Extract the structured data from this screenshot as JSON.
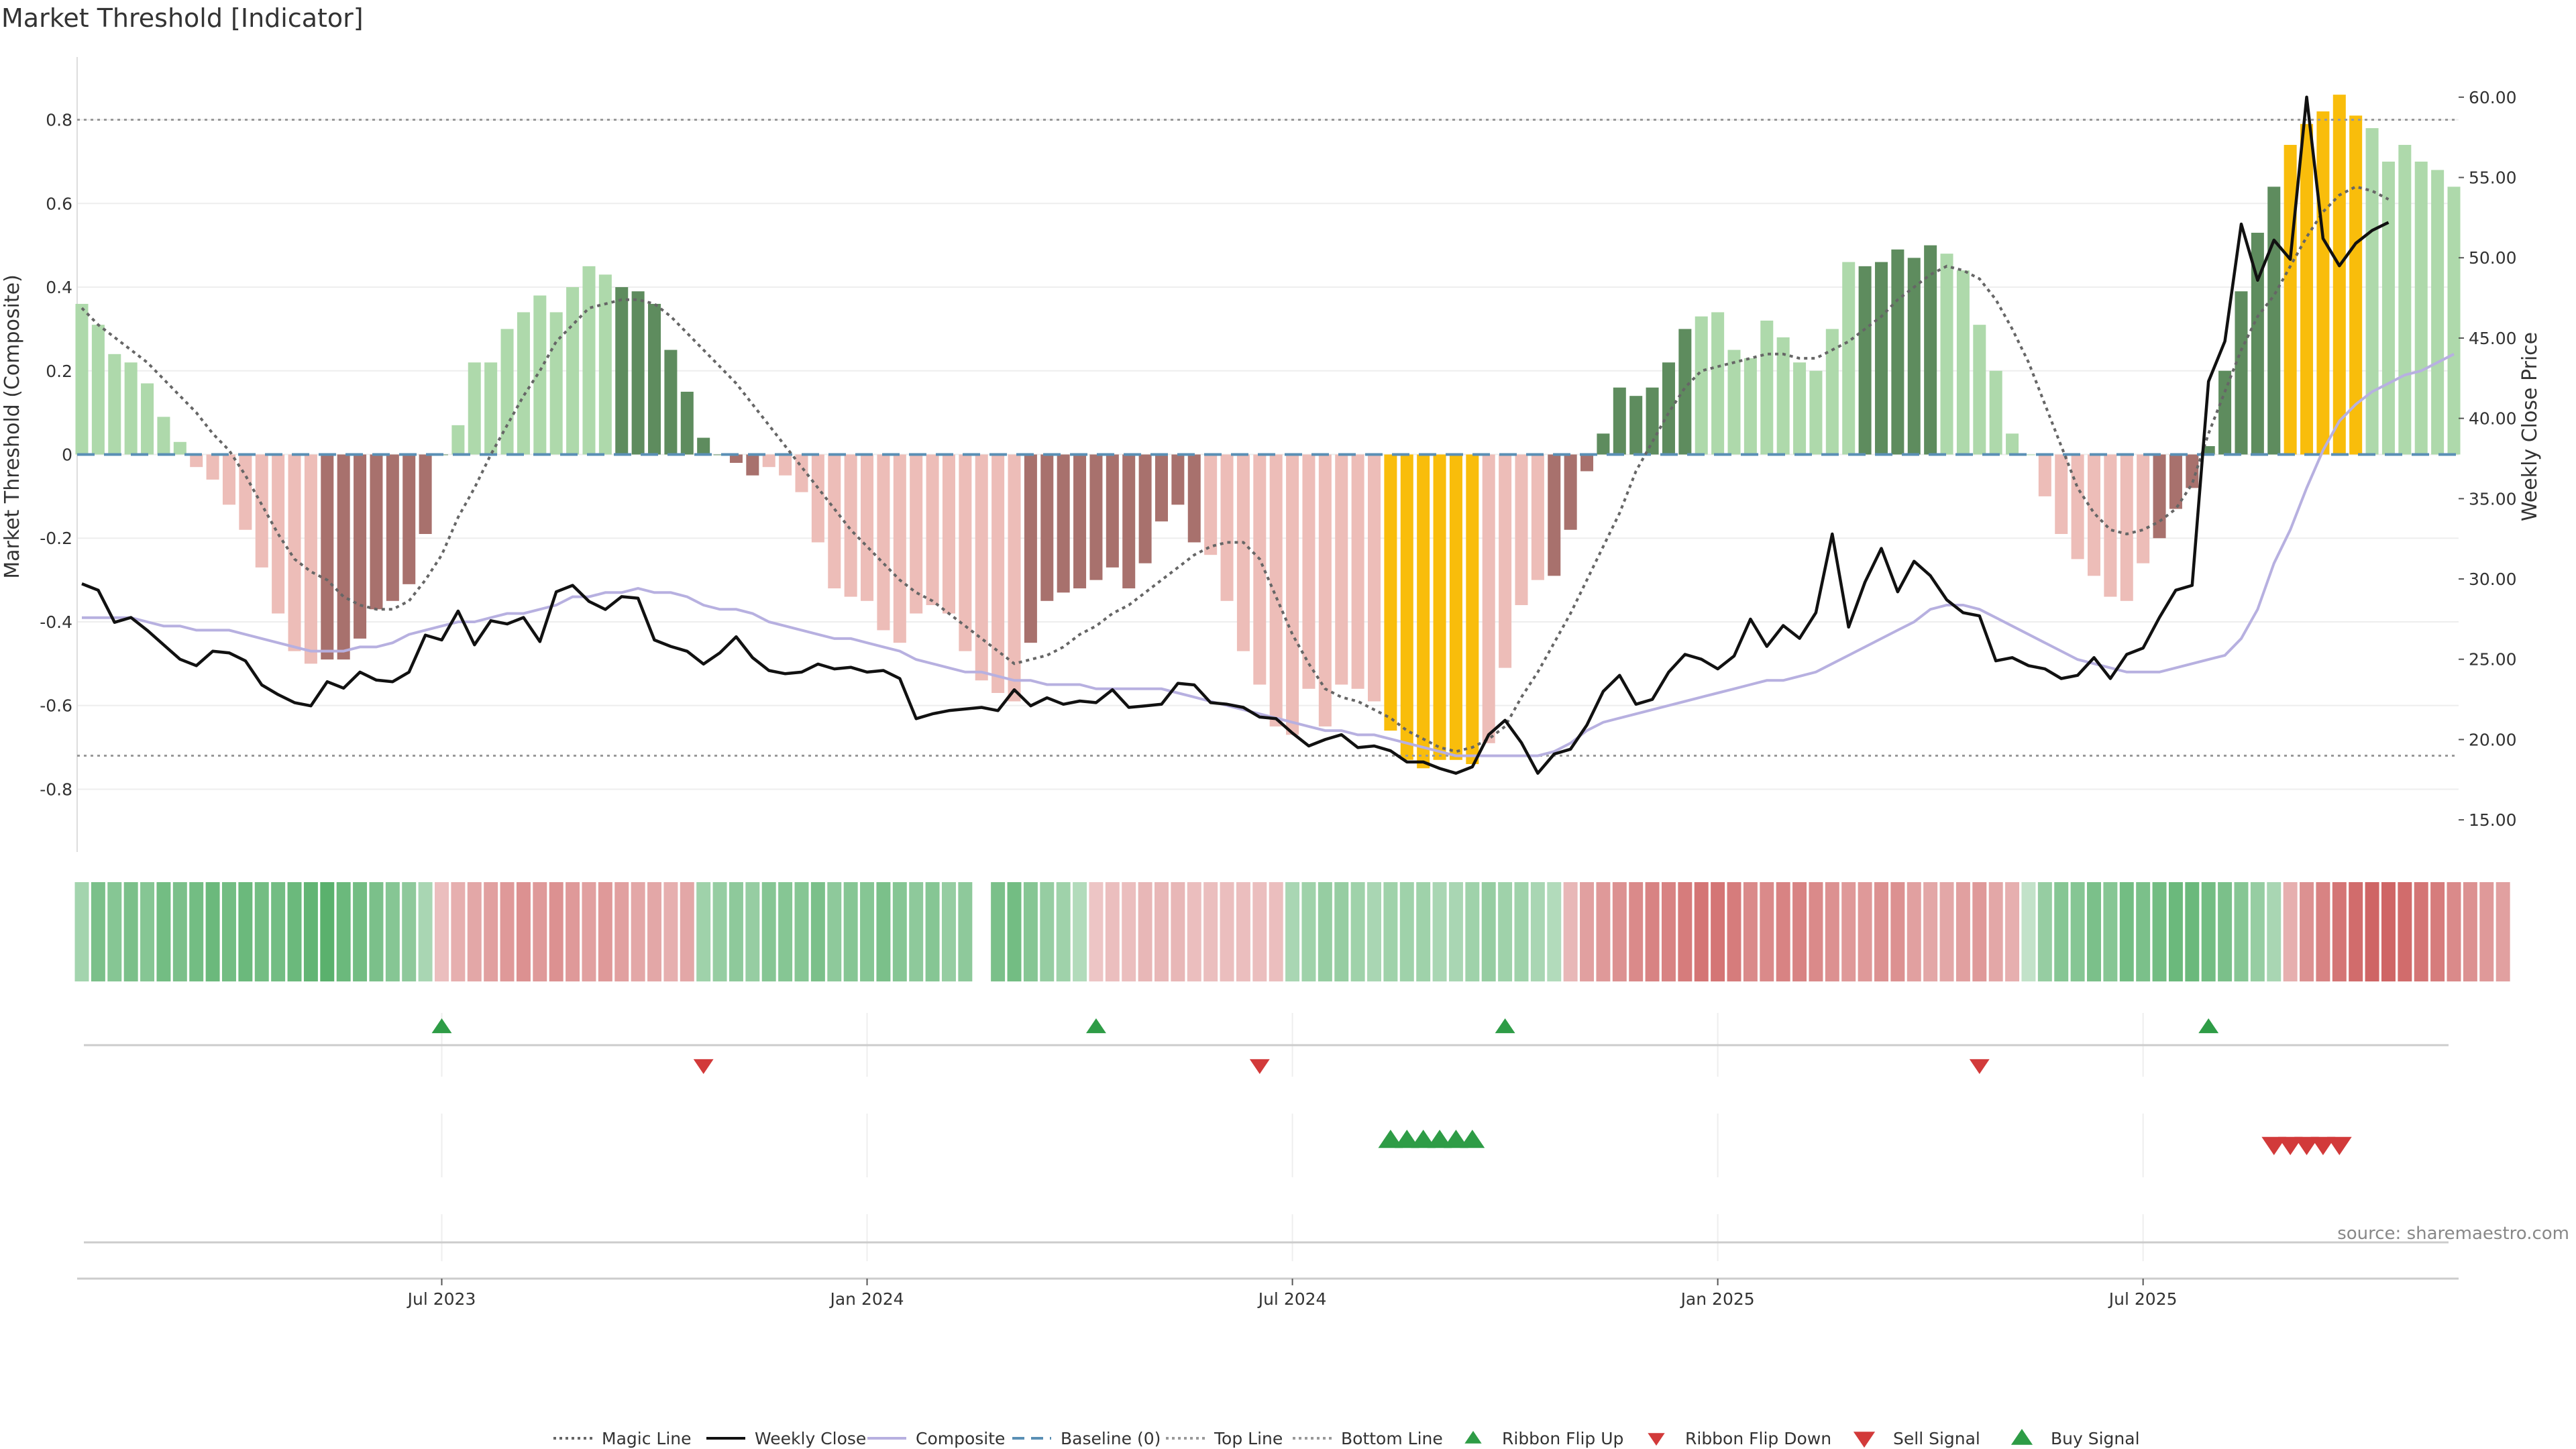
{
  "title": "Market Threshold [Indicator]",
  "source": "source: sharemaestro.com",
  "colors": {
    "bar_strong_green": "#5e8c5e",
    "bar_light_green": "#aed9ab",
    "bar_strong_red": "#a8716d",
    "bar_light_red": "#edbdb8",
    "bar_extreme": "#f9bd0b",
    "weekly_close": "#111111",
    "composite": "#b7b0e0",
    "magic_line": "#666666",
    "baseline": "#5a8fb5",
    "threshold_line": "#999999",
    "signal_green": "#2e9c46",
    "signal_red": "#d23a3a"
  },
  "chart_data": {
    "type": "bar",
    "left_axis": {
      "label": "Market Threshold (Composite)",
      "ylim": [
        -0.95,
        0.95
      ],
      "ticks": [
        "-0.8",
        "-0.6",
        "-0.4",
        "-0.2",
        "0",
        "0.2",
        "0.4",
        "0.6",
        "0.8"
      ]
    },
    "right_axis": {
      "label": "Weekly Close Price",
      "ylim": [
        13.0,
        62.5
      ],
      "ticks": [
        "15.00",
        "20.00",
        "25.00",
        "30.00",
        "35.00",
        "40.00",
        "45.00",
        "50.00",
        "55.00",
        "60.00"
      ]
    },
    "x_ticks": [
      {
        "label": "Jul 2023",
        "week": 22
      },
      {
        "label": "Jan 2024",
        "week": 48
      },
      {
        "label": "Jul 2024",
        "week": 74
      },
      {
        "label": "Jan 2025",
        "week": 100
      },
      {
        "label": "Jul 2025",
        "week": 126
      }
    ],
    "reference_lines": {
      "top": 0.8,
      "bottom": -0.72,
      "baseline": 0
    },
    "threshold_bars": [
      0.36,
      0.31,
      0.24,
      0.22,
      0.17,
      0.09,
      0.03,
      -0.03,
      -0.06,
      -0.12,
      -0.18,
      -0.27,
      -0.38,
      -0.47,
      -0.5,
      -0.49,
      -0.49,
      -0.44,
      -0.37,
      -0.35,
      -0.31,
      -0.19,
      0,
      0.07,
      0.22,
      0.22,
      0.3,
      0.34,
      0.38,
      0.34,
      0.4,
      0.45,
      0.43,
      0.4,
      0.39,
      0.36,
      0.25,
      0.15,
      0.04,
      0,
      -0.02,
      -0.05,
      -0.03,
      -0.05,
      -0.09,
      -0.21,
      -0.32,
      -0.34,
      -0.35,
      -0.42,
      -0.45,
      -0.38,
      -0.36,
      -0.38,
      -0.47,
      -0.54,
      -0.57,
      -0.59,
      -0.45,
      -0.35,
      -0.33,
      -0.32,
      -0.3,
      -0.27,
      -0.32,
      -0.26,
      -0.16,
      -0.12,
      -0.21,
      -0.24,
      -0.35,
      -0.47,
      -0.55,
      -0.65,
      -0.67,
      -0.56,
      -0.65,
      -0.55,
      -0.56,
      -0.59,
      -0.66,
      -0.73,
      -0.75,
      -0.73,
      -0.73,
      -0.74,
      -0.69,
      -0.51,
      -0.36,
      -0.3,
      -0.29,
      -0.18,
      -0.04,
      0.05,
      0.16,
      0.14,
      0.16,
      0.22,
      0.3,
      0.33,
      0.34,
      0.25,
      0.23,
      0.32,
      0.28,
      0.22,
      0.2,
      0.3,
      0.46,
      0.45,
      0.46,
      0.49,
      0.47,
      0.5,
      0.48,
      0.44,
      0.31,
      0.2,
      0.05,
      0,
      -0.1,
      -0.19,
      -0.25,
      -0.29,
      -0.34,
      -0.35,
      -0.26,
      -0.2,
      -0.13,
      -0.08,
      0.02,
      0.2,
      0.39,
      0.53,
      0.64,
      0.74,
      0.79,
      0.82,
      0.86,
      0.81,
      0.78,
      0.7,
      0.74,
      0.7,
      0.68,
      0.64
    ],
    "bar_tone": "SSSSSSSSSSSSSSSLLLLLLLLSSSSSSSSSSLLLLLLLLLSSSSSSSSSSSSSSSSLLLLLLLLLLLSSSSSSSSSSSSSSSSSSSSSLLLLLLLLLSSSSSSSSSSLLLLLSSSSSSSSSSSSSLLLLLLLLLLSSSSSSSSSLLLLLLLLLSSSSSSSSSSSSSSLLLLLLLLL",
    "extreme_bars": [
      80,
      81,
      82,
      83,
      84,
      85,
      135,
      136,
      137,
      138,
      139
    ],
    "weekly_close": [
      29.7,
      29.3,
      27.3,
      27.6,
      26.8,
      25.9,
      25.0,
      24.6,
      25.5,
      25.4,
      24.9,
      23.4,
      22.8,
      22.3,
      22.1,
      23.6,
      23.2,
      24.2,
      23.7,
      23.6,
      24.2,
      26.5,
      26.2,
      28.0,
      25.9,
      27.4,
      27.2,
      27.6,
      26.1,
      29.2,
      29.6,
      28.6,
      28.1,
      28.9,
      28.8,
      26.2,
      25.8,
      25.5,
      24.7,
      25.4,
      26.4,
      25.1,
      24.3,
      24.1,
      24.2,
      24.7,
      24.4,
      24.5,
      24.2,
      24.3,
      23.8,
      21.3,
      21.6,
      21.8,
      21.9,
      22.0,
      21.8,
      23.1,
      22.1,
      22.6,
      22.2,
      22.4,
      22.3,
      23.1,
      22.0,
      22.1,
      22.2,
      23.5,
      23.4,
      22.3,
      22.2,
      22.0,
      21.4,
      21.3,
      20.4,
      19.6,
      20.0,
      20.3,
      19.5,
      19.6,
      19.3,
      18.6,
      18.6,
      18.2,
      17.9,
      18.3,
      20.3,
      21.2,
      19.8,
      17.9,
      19.1,
      19.4,
      20.9,
      23.0,
      24.0,
      22.2,
      22.5,
      24.2,
      25.3,
      25.0,
      24.4,
      25.2,
      27.5,
      25.8,
      27.1,
      26.3,
      27.9,
      32.8,
      27.0,
      29.8,
      31.9,
      29.2,
      31.1,
      30.2,
      28.7,
      27.9,
      27.7,
      24.9,
      25.1,
      24.6,
      24.4,
      23.8,
      24.0,
      25.1,
      23.8,
      25.3,
      25.7,
      27.6,
      29.3,
      29.6,
      42.3,
      44.8,
      52.1,
      48.6,
      51.1,
      49.9,
      60.0,
      51.2,
      49.5,
      50.9,
      51.7,
      52.2
    ],
    "composite": [
      -0.39,
      -0.39,
      -0.39,
      -0.39,
      -0.4,
      -0.41,
      -0.41,
      -0.42,
      -0.42,
      -0.42,
      -0.43,
      -0.44,
      -0.45,
      -0.46,
      -0.47,
      -0.47,
      -0.47,
      -0.46,
      -0.46,
      -0.45,
      -0.43,
      -0.42,
      -0.41,
      -0.4,
      -0.4,
      -0.39,
      -0.38,
      -0.38,
      -0.37,
      -0.36,
      -0.34,
      -0.34,
      -0.33,
      -0.33,
      -0.32,
      -0.33,
      -0.33,
      -0.34,
      -0.36,
      -0.37,
      -0.37,
      -0.38,
      -0.4,
      -0.41,
      -0.42,
      -0.43,
      -0.44,
      -0.44,
      -0.45,
      -0.46,
      -0.47,
      -0.49,
      -0.5,
      -0.51,
      -0.52,
      -0.52,
      -0.53,
      -0.54,
      -0.54,
      -0.55,
      -0.55,
      -0.55,
      -0.56,
      -0.56,
      -0.56,
      -0.56,
      -0.56,
      -0.57,
      -0.58,
      -0.59,
      -0.6,
      -0.61,
      -0.62,
      -0.63,
      -0.64,
      -0.65,
      -0.66,
      -0.66,
      -0.67,
      -0.67,
      -0.68,
      -0.69,
      -0.7,
      -0.71,
      -0.72,
      -0.72,
      -0.72,
      -0.72,
      -0.72,
      -0.72,
      -0.71,
      -0.69,
      -0.66,
      -0.64,
      -0.63,
      -0.62,
      -0.61,
      -0.6,
      -0.59,
      -0.58,
      -0.57,
      -0.56,
      -0.55,
      -0.54,
      -0.54,
      -0.53,
      -0.52,
      -0.5,
      -0.48,
      -0.46,
      -0.44,
      -0.42,
      -0.4,
      -0.37,
      -0.36,
      -0.36,
      -0.37,
      -0.39,
      -0.41,
      -0.43,
      -0.45,
      -0.47,
      -0.49,
      -0.5,
      -0.51,
      -0.52,
      -0.52,
      -0.52,
      -0.51,
      -0.5,
      -0.49,
      -0.48,
      -0.44,
      -0.37,
      -0.26,
      -0.18,
      -0.08,
      0.01,
      0.08,
      0.12,
      0.15,
      0.17,
      0.19,
      0.2,
      0.22,
      0.24
    ],
    "magic_line": [
      0.35,
      0.31,
      0.28,
      0.25,
      0.22,
      0.18,
      0.14,
      0.1,
      0.05,
      0.01,
      -0.05,
      -0.12,
      -0.19,
      -0.25,
      -0.28,
      -0.3,
      -0.34,
      -0.36,
      -0.37,
      -0.37,
      -0.35,
      -0.3,
      -0.24,
      -0.15,
      -0.08,
      0,
      0.07,
      0.14,
      0.2,
      0.27,
      0.31,
      0.35,
      0.36,
      0.37,
      0.37,
      0.36,
      0.33,
      0.29,
      0.25,
      0.21,
      0.17,
      0.12,
      0.07,
      0.02,
      -0.03,
      -0.08,
      -0.13,
      -0.18,
      -0.22,
      -0.26,
      -0.3,
      -0.33,
      -0.35,
      -0.38,
      -0.41,
      -0.44,
      -0.47,
      -0.5,
      -0.49,
      -0.48,
      -0.46,
      -0.43,
      -0.41,
      -0.38,
      -0.36,
      -0.33,
      -0.3,
      -0.27,
      -0.24,
      -0.22,
      -0.21,
      -0.21,
      -0.25,
      -0.34,
      -0.43,
      -0.5,
      -0.56,
      -0.58,
      -0.59,
      -0.61,
      -0.63,
      -0.66,
      -0.68,
      -0.7,
      -0.71,
      -0.7,
      -0.68,
      -0.65,
      -0.58,
      -0.52,
      -0.45,
      -0.38,
      -0.3,
      -0.22,
      -0.14,
      -0.04,
      0.03,
      0.1,
      0.16,
      0.2,
      0.21,
      0.22,
      0.23,
      0.24,
      0.24,
      0.23,
      0.23,
      0.25,
      0.27,
      0.3,
      0.33,
      0.37,
      0.4,
      0.43,
      0.45,
      0.44,
      0.42,
      0.37,
      0.3,
      0.22,
      0.12,
      0.02,
      -0.08,
      -0.14,
      -0.18,
      -0.19,
      -0.18,
      -0.16,
      -0.13,
      -0.07,
      0.05,
      0.15,
      0.25,
      0.33,
      0.38,
      0.45,
      0.52,
      0.58,
      0.62,
      0.64,
      0.63,
      0.61
    ],
    "ribbon": [
      0.28,
      0.5,
      0.45,
      0.5,
      0.45,
      0.55,
      0.5,
      0.55,
      0.6,
      0.55,
      0.6,
      0.55,
      0.55,
      0.6,
      0.65,
      0.7,
      0.6,
      0.55,
      0.5,
      0.45,
      0.4,
      0.25,
      -0.2,
      -0.3,
      -0.35,
      -0.4,
      -0.45,
      -0.5,
      -0.45,
      -0.5,
      -0.45,
      -0.4,
      -0.45,
      -0.4,
      -0.35,
      -0.35,
      -0.3,
      -0.35,
      0.3,
      0.35,
      0.4,
      0.35,
      0.45,
      0.45,
      0.45,
      0.5,
      0.4,
      0.45,
      0.45,
      0.5,
      0.45,
      0.4,
      0.45,
      0.35,
      0.4,
      null,
      0.5,
      0.55,
      0.45,
      0.35,
      0.3,
      0.2,
      -0.15,
      -0.2,
      -0.2,
      -0.25,
      -0.25,
      -0.25,
      -0.2,
      -0.2,
      -0.2,
      -0.2,
      -0.2,
      -0.2,
      0.25,
      0.3,
      0.35,
      0.35,
      0.3,
      0.25,
      0.3,
      0.3,
      0.3,
      0.25,
      0.25,
      0.3,
      0.35,
      0.3,
      0.3,
      0.25,
      0.2,
      -0.25,
      -0.4,
      -0.45,
      -0.5,
      -0.55,
      -0.6,
      -0.6,
      -0.65,
      -0.7,
      -0.7,
      -0.65,
      -0.55,
      -0.55,
      -0.6,
      -0.6,
      -0.55,
      -0.5,
      -0.45,
      -0.45,
      -0.5,
      -0.5,
      -0.4,
      -0.35,
      -0.35,
      -0.4,
      -0.45,
      -0.35,
      -0.3,
      0.1,
      0.35,
      0.45,
      0.45,
      0.5,
      0.45,
      0.55,
      0.5,
      0.55,
      0.6,
      0.6,
      0.55,
      0.5,
      0.45,
      0.35,
      0.25,
      -0.3,
      -0.5,
      -0.6,
      -0.7,
      -0.75,
      -0.8,
      -0.8,
      -0.75,
      -0.7,
      -0.65,
      -0.55,
      -0.5,
      -0.45,
      -0.4
    ],
    "ribbon_flip_up_weeks": [
      22,
      62,
      87,
      130
    ],
    "ribbon_flip_down_weeks": [
      38,
      72,
      116
    ],
    "buy_signal_weeks": [
      80,
      81,
      82,
      83,
      84,
      85
    ],
    "sell_signal_weeks": [
      134,
      135,
      136,
      137,
      138
    ]
  },
  "legend": [
    {
      "label": "Magic Line",
      "style": "dotted",
      "color": "#666666"
    },
    {
      "label": "Weekly Close",
      "style": "solid",
      "color": "#111111"
    },
    {
      "label": "Composite",
      "style": "solid",
      "color": "#b7b0e0"
    },
    {
      "label": "Baseline (0)",
      "style": "dashed",
      "color": "#5a8fb5"
    },
    {
      "label": "Top Line",
      "style": "dotted",
      "color": "#999999"
    },
    {
      "label": "Bottom Line",
      "style": "dotted",
      "color": "#999999"
    },
    {
      "label": "Ribbon Flip Up",
      "style": "tri-up",
      "color": "#2e9c46"
    },
    {
      "label": "Ribbon Flip Down",
      "style": "tri-down",
      "color": "#d23a3a"
    },
    {
      "label": "Sell Signal",
      "style": "tri-down-big",
      "color": "#d23a3a"
    },
    {
      "label": "Buy Signal",
      "style": "tri-up-big",
      "color": "#2e9c46"
    }
  ]
}
